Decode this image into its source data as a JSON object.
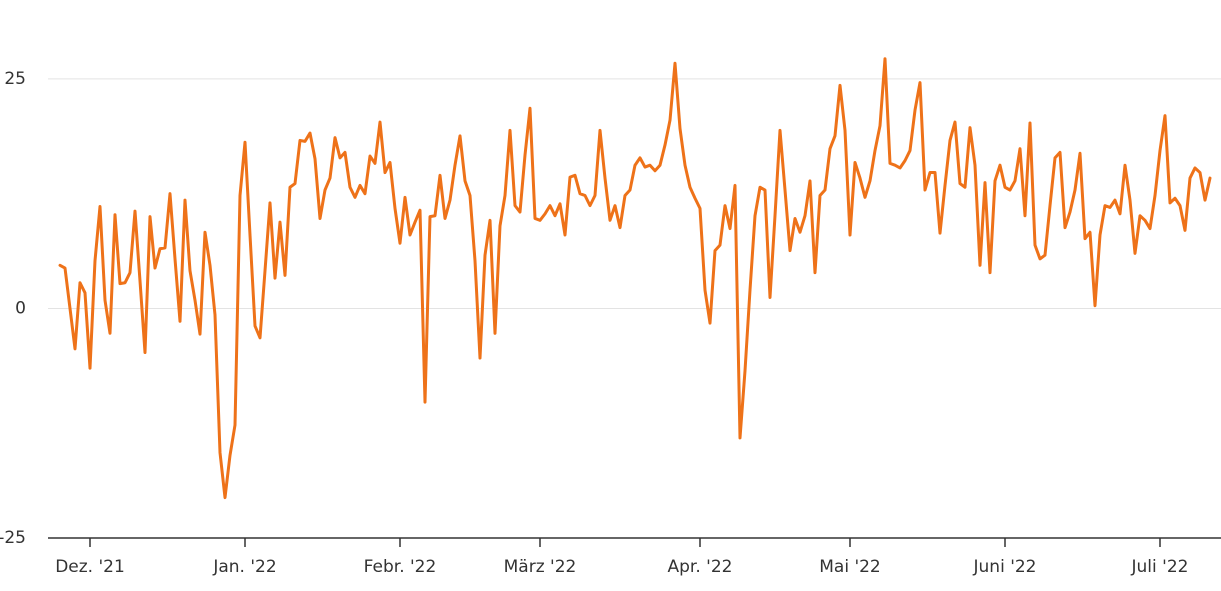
{
  "chart_data": {
    "type": "line",
    "x": [
      0,
      1,
      2,
      3,
      4,
      5,
      6,
      7,
      8,
      9,
      10,
      11,
      12,
      13,
      14,
      15,
      16,
      17,
      18,
      19,
      20,
      21,
      22,
      23,
      24,
      25,
      26,
      27,
      28,
      29,
      30,
      31,
      32,
      33,
      34,
      35,
      36,
      37,
      38,
      39,
      40,
      41,
      42,
      43,
      44,
      45,
      46,
      47,
      48,
      49,
      50,
      51,
      52,
      53,
      54,
      55,
      56,
      57,
      58,
      59,
      60,
      61,
      62,
      63,
      64,
      65,
      66,
      67,
      68,
      69,
      70,
      71,
      72,
      73,
      74,
      75,
      76,
      77,
      78,
      79,
      80,
      81,
      82,
      83,
      84,
      85,
      86,
      87,
      88,
      89,
      90,
      91,
      92,
      93,
      94,
      95,
      96,
      97,
      98,
      99,
      100,
      101,
      102,
      103,
      104,
      105,
      106,
      107,
      108,
      109,
      110,
      111,
      112,
      113,
      114,
      115,
      116,
      117,
      118,
      119,
      120,
      121,
      122,
      123,
      124,
      125,
      126,
      127,
      128,
      129,
      130,
      131,
      132,
      133,
      134,
      135,
      136,
      137,
      138,
      139,
      140,
      141,
      142,
      143,
      144,
      145,
      146,
      147,
      148,
      149,
      150,
      151,
      152,
      153,
      154,
      155,
      156,
      157,
      158,
      159,
      160,
      161,
      162,
      163,
      164,
      165,
      166,
      167,
      168,
      169,
      170,
      171,
      172,
      173,
      174,
      175,
      176,
      177,
      178,
      179,
      180,
      181,
      182,
      183,
      184,
      185,
      186,
      187,
      188,
      189,
      190,
      191,
      192,
      193,
      194,
      195,
      196,
      197,
      198,
      199,
      200,
      201,
      202,
      203,
      204,
      205,
      206,
      207,
      208,
      209,
      210,
      211,
      212,
      213,
      214,
      215,
      216,
      217,
      218,
      219,
      220,
      221,
      222,
      223,
      224,
      225,
      226,
      227,
      228,
      229,
      230
    ],
    "series": [
      {
        "color": "#ee7219",
        "values": [
          4.7,
          4.4,
          0,
          -4.4,
          2.8,
          1.7,
          -6.5,
          5.2,
          11.1,
          0.9,
          -2.7,
          10.2,
          2.7,
          2.8,
          3.9,
          10.6,
          3,
          -4.8,
          10,
          4.4,
          6.5,
          6.6,
          12.5,
          5.4,
          -1.4,
          11.8,
          4.1,
          0.9,
          -2.8,
          8.3,
          4.7,
          -0.7,
          -15.7,
          -20.6,
          -16,
          -12.7,
          12.3,
          18.1,
          8,
          -1.9,
          -3.2,
          4.1,
          11.5,
          3.3,
          9.4,
          3.6,
          13.2,
          13.6,
          18.3,
          18.2,
          19.1,
          16.3,
          9.8,
          12.9,
          14.2,
          18.6,
          16.4,
          17,
          13.2,
          12.1,
          13.4,
          12.5,
          16.6,
          15.8,
          20.3,
          14.8,
          15.9,
          10.9,
          7.1,
          12.1,
          8,
          9.4,
          10.7,
          -10.2,
          10,
          10.1,
          14.5,
          9.8,
          11.8,
          15.6,
          18.8,
          13.9,
          12.3,
          5.2,
          -5.4,
          5.8,
          9.6,
          -2.7,
          9,
          12.3,
          19.4,
          11.2,
          10.5,
          16.7,
          21.8,
          9.8,
          9.6,
          10.3,
          11.2,
          10.1,
          11.4,
          8,
          14.3,
          14.5,
          12.5,
          12.3,
          11.2,
          12.3,
          19.4,
          14.2,
          9.6,
          11.2,
          8.8,
          12.3,
          12.9,
          15.6,
          16.4,
          15.4,
          15.6,
          15,
          15.6,
          17.8,
          20.5,
          26.7,
          19.6,
          15.6,
          13.2,
          12,
          10.9,
          2,
          -1.6,
          6.3,
          6.9,
          11.2,
          8.7,
          13.4,
          -14.1,
          -6.8,
          2,
          10.1,
          13.2,
          12.9,
          1.2,
          10.1,
          19.4,
          12.9,
          6.3,
          9.8,
          8.3,
          10.1,
          13.9,
          3.9,
          12.3,
          12.9,
          17.4,
          18.8,
          24.3,
          19.4,
          8,
          15.9,
          14.2,
          12.1,
          13.9,
          17.2,
          19.9,
          27.2,
          15.8,
          15.6,
          15.3,
          16.1,
          17.2,
          21.6,
          24.6,
          12.9,
          14.8,
          14.8,
          8.2,
          13.4,
          18.3,
          20.3,
          13.6,
          13.2,
          19.7,
          15.6,
          4.7,
          13.7,
          3.9,
          13.9,
          15.6,
          13.2,
          12.9,
          13.9,
          17.4,
          10.1,
          20.2,
          6.9,
          5.4,
          5.8,
          11.2,
          16.4,
          17,
          8.8,
          10.5,
          12.9,
          16.9,
          7.6,
          8.3,
          0.3,
          8,
          11.2,
          11,
          11.8,
          10.3,
          15.6,
          11.8,
          6,
          10.1,
          9.6,
          8.7,
          12.3,
          17.2,
          21,
          11.5,
          12,
          11.2,
          8.5,
          14.2,
          15.3,
          14.8,
          11.8,
          14.2
        ]
      }
    ],
    "xlim": [
      0,
      230
    ],
    "xticks": [
      {
        "value": 6,
        "label": "Dez. '21"
      },
      {
        "value": 37,
        "label": "Jan. '22"
      },
      {
        "value": 68,
        "label": "Febr. '22"
      },
      {
        "value": 96,
        "label": "März '22"
      },
      {
        "value": 128,
        "label": "Apr. '22"
      },
      {
        "value": 158,
        "label": "Mai '22"
      },
      {
        "value": 189,
        "label": "Juni '22"
      },
      {
        "value": 220,
        "label": "Juli '22"
      }
    ],
    "ylim": [
      -25,
      30
    ],
    "yticks": [
      -25,
      0,
      25
    ],
    "grid": true
  }
}
